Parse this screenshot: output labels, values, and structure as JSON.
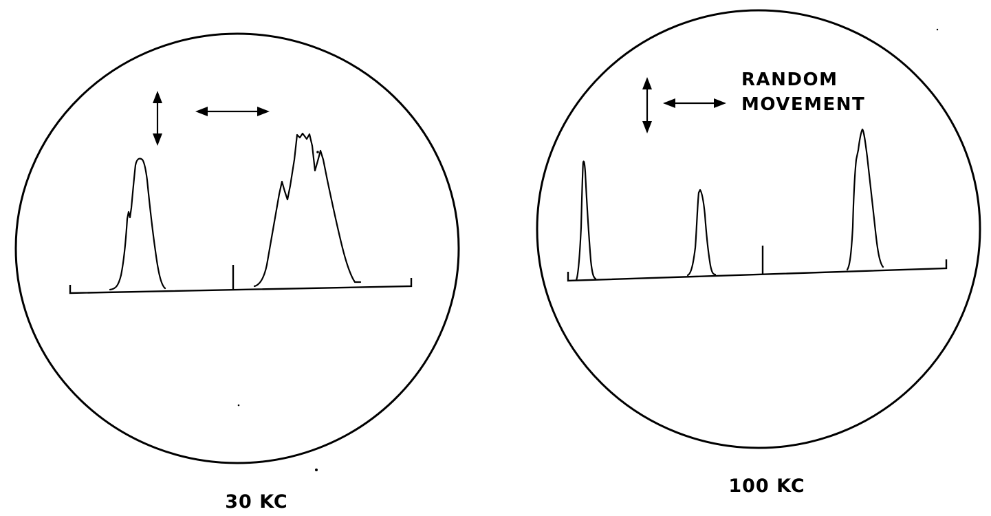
{
  "panels": [
    {
      "caption": "30 KC"
    },
    {
      "caption": "100 KC"
    }
  ],
  "annotation": {
    "line1": "RANDOM",
    "line2": "MOVEMENT"
  }
}
